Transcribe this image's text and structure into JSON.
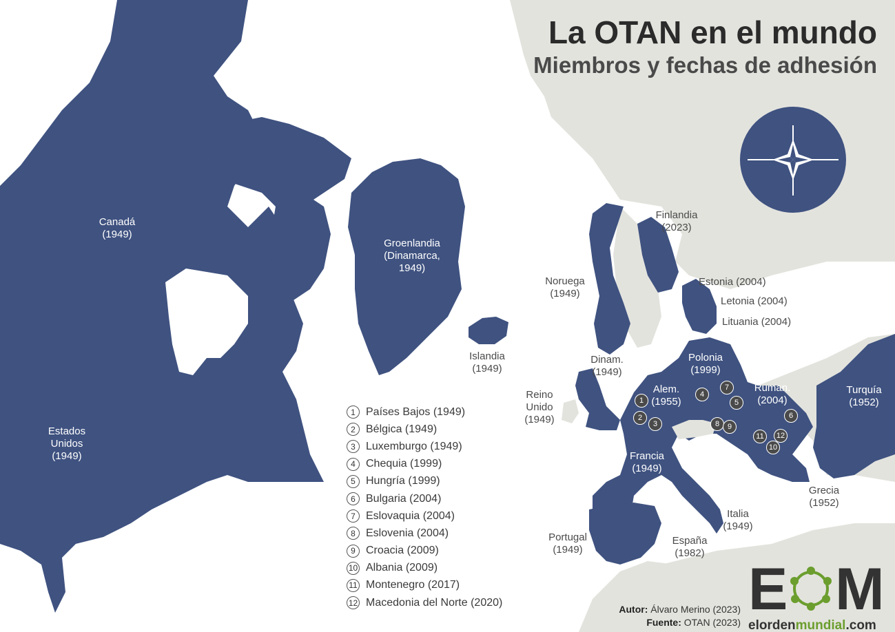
{
  "header": {
    "title": "La OTAN en el mundo",
    "subtitle": "Miembros y fechas de adhesión"
  },
  "colors": {
    "member": "#3f5280",
    "non_member": "#e3e3de",
    "sea": "#ffffff",
    "badge": "#4a4a4a",
    "accent_green": "#6b9e2e"
  },
  "map_labels": {
    "canada": "Canadá\n(1949)",
    "usa": "Estados\nUnidos\n(1949)",
    "greenland": "Groenlandia\n(Dinamarca,\n1949)",
    "iceland": "Islandia\n(1949)",
    "norway": "Noruega\n(1949)",
    "finland": "Finlandia\n(2023)",
    "estonia": "Estonia (2004)",
    "latvia": "Letonia (2004)",
    "lithuania": "Lituania (2004)",
    "denmark": "Dinam.\n(1949)",
    "poland": "Polonia\n(1999)",
    "uk": "Reino\nUnido\n(1949)",
    "germany": "Alem.\n(1955)",
    "romania": "Ruman.\n(2004)",
    "turkey": "Turquía\n(1952)",
    "france": "Francia\n(1949)",
    "greece": "Grecia\n(1952)",
    "italy": "Italia\n(1949)",
    "portugal": "Portugal\n(1949)",
    "spain": "España\n(1982)"
  },
  "legend": [
    {
      "num": "1",
      "label": "Países Bajos (1949)"
    },
    {
      "num": "2",
      "label": "Bélgica (1949)"
    },
    {
      "num": "3",
      "label": "Luxemburgo (1949)"
    },
    {
      "num": "4",
      "label": "Chequia (1999)"
    },
    {
      "num": "5",
      "label": "Hungría (1999)"
    },
    {
      "num": "6",
      "label": "Bulgaria (2004)"
    },
    {
      "num": "7",
      "label": "Eslovaquia (2004)"
    },
    {
      "num": "8",
      "label": "Eslovenia (2004)"
    },
    {
      "num": "9",
      "label": "Croacia (2009)"
    },
    {
      "num": "10",
      "label": "Albania (2009)"
    },
    {
      "num": "11",
      "label": "Montenegro (2017)"
    },
    {
      "num": "12",
      "label": "Macedonia del Norte (2020)"
    }
  ],
  "credits": {
    "author_label": "Autor:",
    "author": "Álvaro Merino (2023)",
    "source_label": "Fuente:",
    "source": "OTAN (2023)"
  },
  "logo": {
    "letter_e": "E",
    "letter_m": "M",
    "site_part1": "elorden",
    "site_part2": "mundial",
    "site_part3": ".com"
  },
  "badges": [
    "1",
    "2",
    "3",
    "4",
    "5",
    "6",
    "7",
    "8",
    "9",
    "10",
    "11",
    "12"
  ]
}
